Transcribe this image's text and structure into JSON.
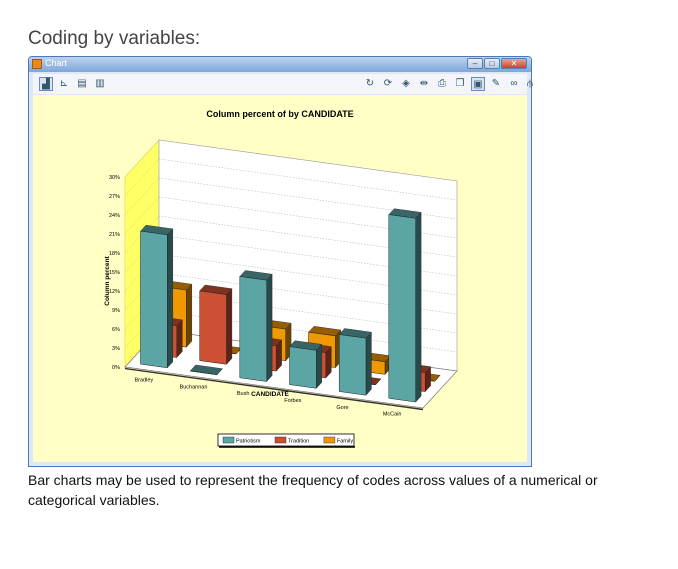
{
  "page": {
    "heading": "Coding by variables:",
    "caption": "Bar charts may be used to represent the frequency of codes across values of a numerical or categorical variables."
  },
  "window": {
    "title": "Chart",
    "minimize_icon": "minimize-icon",
    "maximize_icon": "maximize-icon",
    "close_icon": "close-icon"
  },
  "toolbar": {
    "left_icons": [
      "bar-chart-icon",
      "line-chart-icon",
      "area-chart-icon",
      "column-chart-icon"
    ],
    "right_icons": [
      "rotate-icon",
      "refresh-icon",
      "palette-icon",
      "legend-icon",
      "print-icon",
      "copy-icon",
      "save-icon",
      "edit-icon",
      "link-icon",
      "stats-icon"
    ]
  },
  "chart_data": {
    "type": "bar",
    "title": "Column percent of  by CANDIDATE",
    "xlabel": "CANDIDATE",
    "ylabel": "Column percent",
    "categories": [
      "Bradley",
      "Buchannan",
      "Bush",
      "Forbes",
      "Gore",
      "McCain"
    ],
    "y_ticks": [
      "0%",
      "3%",
      "6%",
      "9%",
      "12%",
      "15%",
      "18%",
      "21%",
      "24%",
      "27%",
      "30%"
    ],
    "ylim": [
      0,
      30
    ],
    "grid": true,
    "legend": "bottom",
    "series": [
      {
        "name": "Patriotism",
        "color": "#5ba5a5",
        "values": [
          21,
          0,
          16,
          6,
          9,
          29
        ]
      },
      {
        "name": "Tradition",
        "color": "#cc5033",
        "values": [
          5,
          11,
          4,
          4,
          0,
          3
        ]
      },
      {
        "name": "Family",
        "color": "#f09800",
        "values": [
          9,
          0,
          5,
          5,
          2,
          0
        ]
      }
    ]
  }
}
